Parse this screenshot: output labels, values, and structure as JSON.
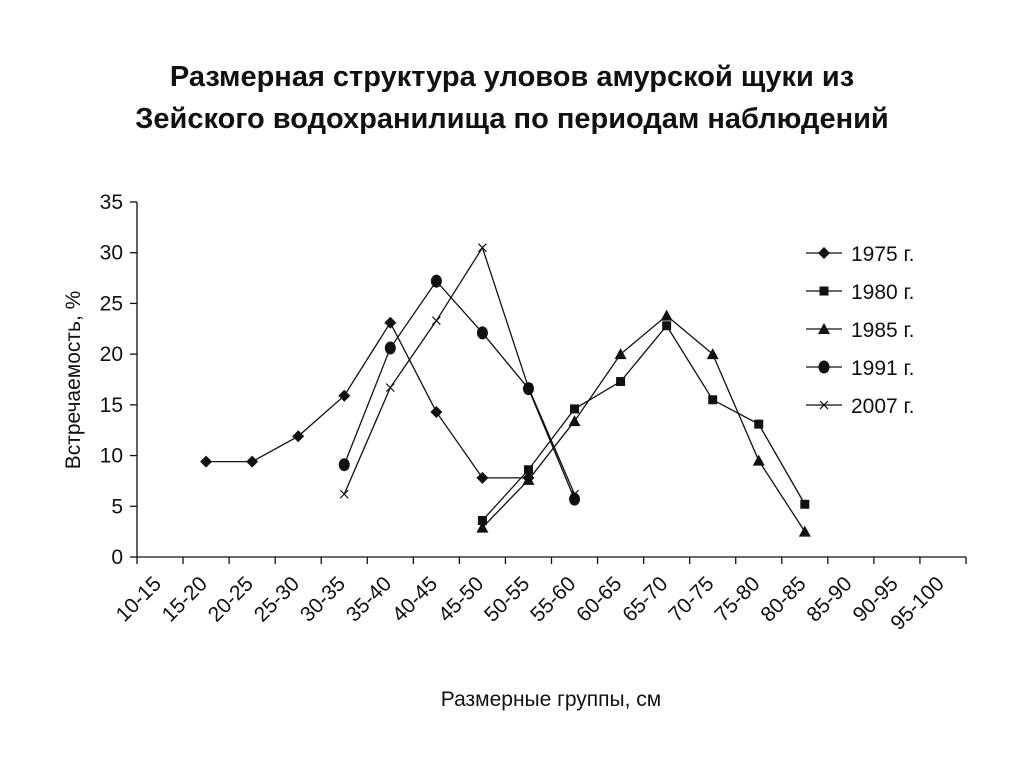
{
  "title": {
    "line1": "Размерная структура уловов амурской щуки из",
    "line2": "Зейского водохранилища по периодам наблюдений"
  },
  "chart_data": {
    "type": "line",
    "xlabel": "Размерные группы, см",
    "ylabel": "Встречаемость, %",
    "ylim": [
      0,
      35
    ],
    "yticks": [
      0,
      5,
      10,
      15,
      20,
      25,
      30,
      35
    ],
    "grid": false,
    "legend_position": "right",
    "categories": [
      "10-15",
      "15-20",
      "20-25",
      "25-30",
      "30-35",
      "35-40",
      "40-45",
      "45-50",
      "50-55",
      "55-60",
      "60-65",
      "65-70",
      "70-75",
      "75-80",
      "80-85",
      "85-90",
      "90-95",
      "95-100"
    ],
    "series": [
      {
        "name": "1975 г.",
        "marker": "diamond",
        "color": "#111111",
        "values": [
          null,
          9.4,
          9.4,
          11.9,
          15.9,
          23.1,
          14.3,
          7.8,
          7.8,
          null,
          null,
          null,
          null,
          null,
          null,
          null,
          null,
          null
        ]
      },
      {
        "name": "1980 г.",
        "marker": "square",
        "color": "#111111",
        "values": [
          null,
          null,
          null,
          null,
          null,
          null,
          null,
          3.6,
          8.6,
          14.6,
          17.3,
          22.8,
          15.5,
          13.1,
          5.2,
          null,
          null,
          null
        ]
      },
      {
        "name": "1985 г.",
        "marker": "triangle",
        "color": "#111111",
        "values": [
          null,
          null,
          null,
          null,
          null,
          null,
          null,
          2.9,
          7.6,
          13.4,
          20.0,
          23.8,
          20.0,
          9.5,
          2.5,
          null,
          null,
          null
        ]
      },
      {
        "name": "1991 г.",
        "marker": "circle",
        "color": "#111111",
        "values": [
          null,
          null,
          null,
          null,
          9.1,
          20.6,
          27.2,
          22.1,
          16.6,
          5.7,
          null,
          null,
          null,
          null,
          null,
          null,
          null,
          null
        ]
      },
      {
        "name": "2007 г.",
        "marker": "x",
        "color": "#111111",
        "values": [
          null,
          null,
          null,
          null,
          6.2,
          16.7,
          23.3,
          30.5,
          16.7,
          6.2,
          null,
          null,
          null,
          null,
          null,
          null,
          null,
          null
        ]
      }
    ]
  }
}
